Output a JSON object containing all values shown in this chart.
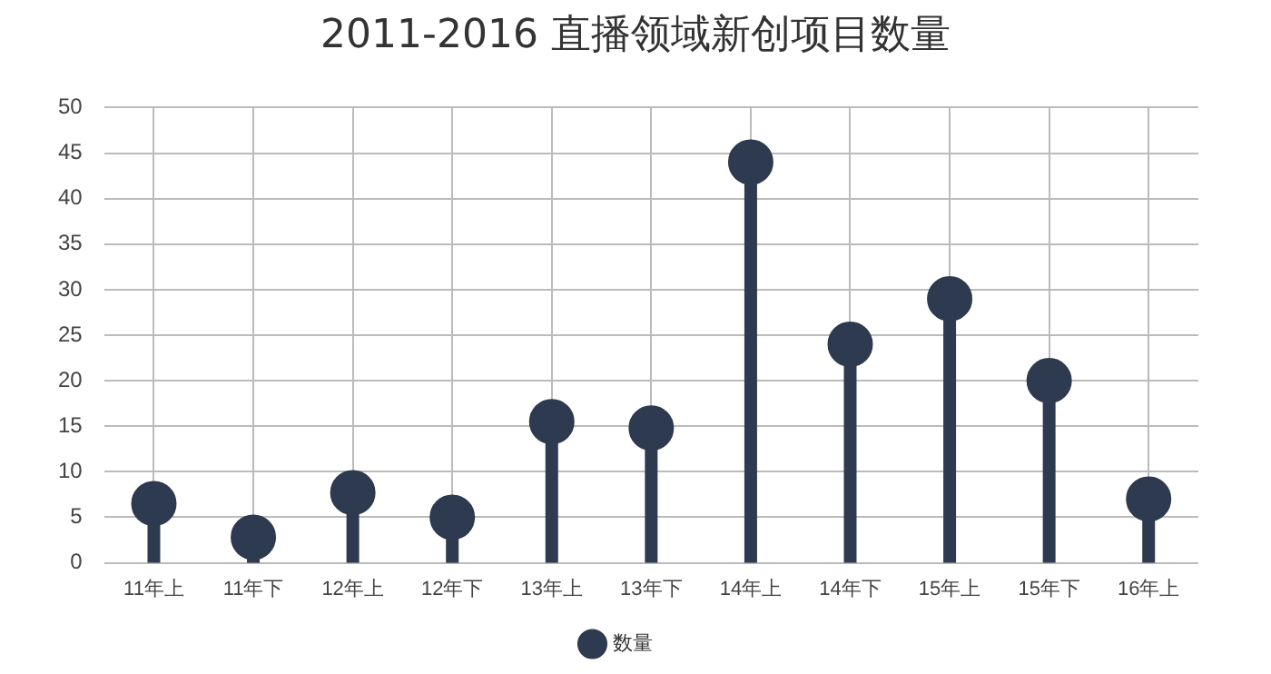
{
  "chart_data": {
    "type": "lollipop",
    "title": "2011-2016 直播领域新创项目数量",
    "categories": [
      "11年上",
      "11年下",
      "12年上",
      "12年下",
      "13年上",
      "13年下",
      "14年上",
      "14年下",
      "15年上",
      "15年下",
      "16年上"
    ],
    "series": [
      {
        "name": "数量",
        "color": "#2e3a4f",
        "values": [
          6.5,
          2.8,
          7.7,
          5,
          15.5,
          14.8,
          44,
          24,
          29,
          20,
          7
        ]
      }
    ],
    "ylim": [
      0,
      50
    ],
    "yticks": [
      0,
      5,
      10,
      15,
      20,
      25,
      30,
      35,
      40,
      45,
      50
    ],
    "grid": true,
    "legend": "bottom",
    "marker": "circle"
  }
}
